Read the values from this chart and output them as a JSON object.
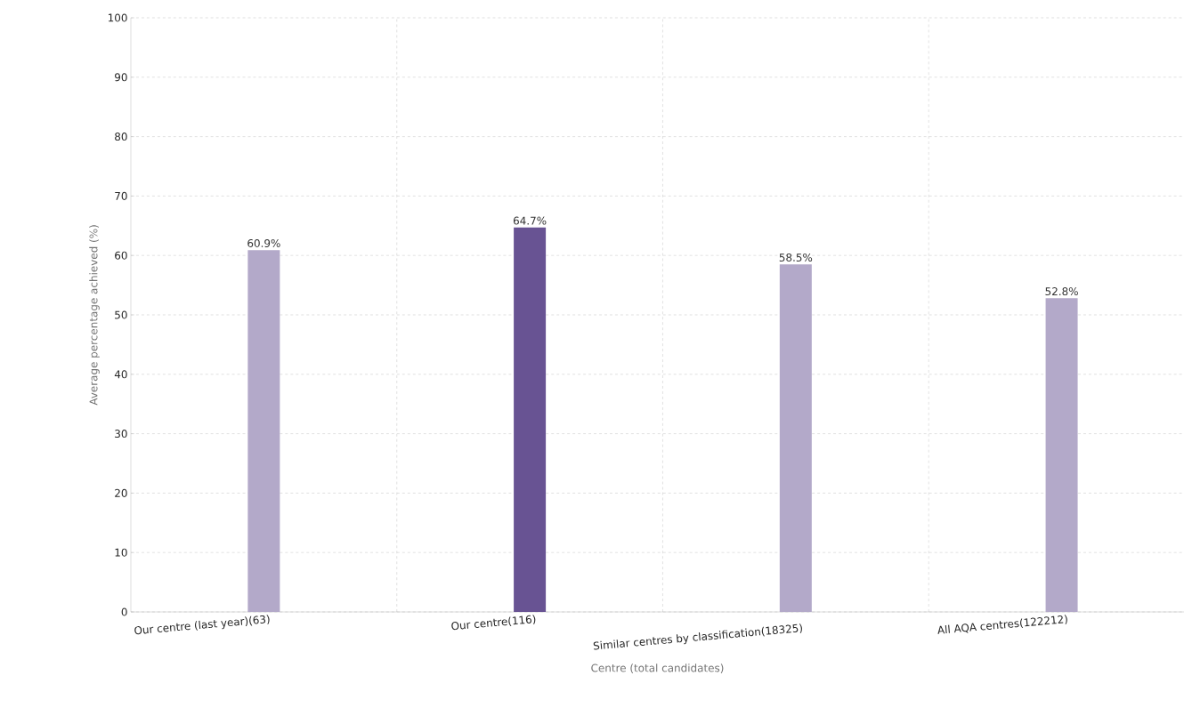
{
  "chart_data": {
    "type": "bar",
    "categories": [
      "Our centre (last year)(63)",
      "Our centre(116)",
      "Similar centres by classification(18325)",
      "All AQA centres(122212)"
    ],
    "values": [
      60.9,
      64.7,
      58.5,
      52.8
    ],
    "colors": [
      "#b3a9c9",
      "#685393",
      "#b3a9c9",
      "#b3a9c9"
    ],
    "value_labels": [
      "60.9%",
      "64.7%",
      "58.5%",
      "52.8%"
    ],
    "xlabel": "Centre (total candidates)",
    "ylabel": "Average percentage achieved (%)",
    "ylim": [
      0,
      100
    ],
    "yticks": [
      0,
      10,
      20,
      30,
      40,
      50,
      60,
      70,
      80,
      90,
      100
    ],
    "grid": true
  }
}
